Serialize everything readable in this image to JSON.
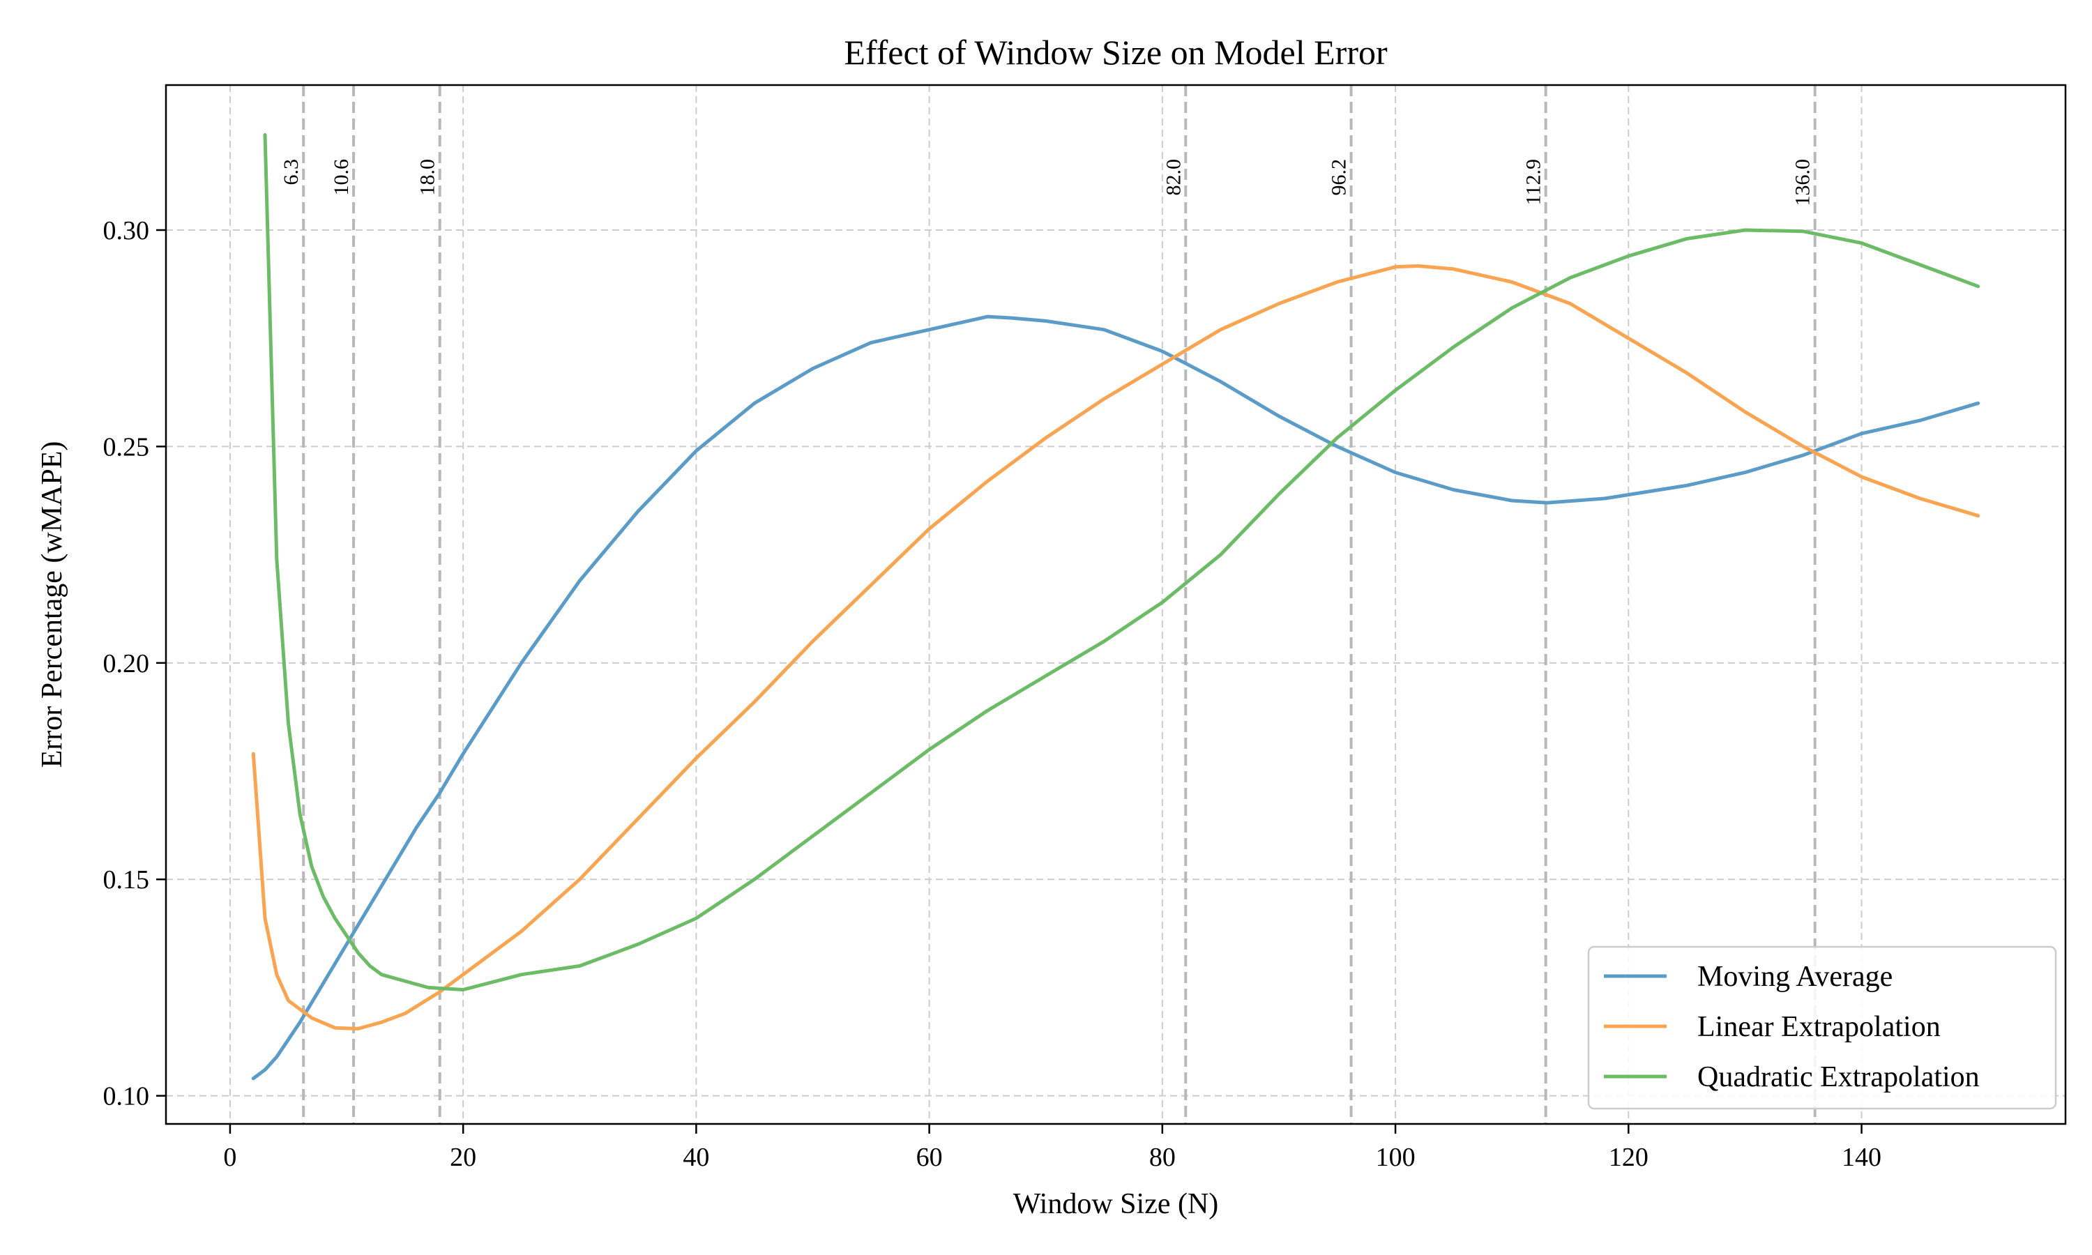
{
  "chart_data": {
    "type": "line",
    "title": "Effect of Window Size on Model Error",
    "xlabel": "Window Size (N)",
    "ylabel": "Error Percentage (wMAPE)",
    "xlim": [
      -5.5,
      157.5
    ],
    "ylim": [
      0.0935,
      0.3335
    ],
    "xticks": [
      0,
      20,
      40,
      60,
      80,
      100,
      120,
      140
    ],
    "xtick_labels": [
      "0",
      "20",
      "40",
      "60",
      "80",
      "100",
      "120",
      "140"
    ],
    "yticks": [
      0.1,
      0.15,
      0.2,
      0.25,
      0.3
    ],
    "ytick_labels": [
      "0.10",
      "0.15",
      "0.20",
      "0.25",
      "0.30"
    ],
    "grid": true,
    "legend_position": "lower-right",
    "vertical_lines": [
      {
        "x": 6.3,
        "label": "6.3"
      },
      {
        "x": 10.6,
        "label": "10.6"
      },
      {
        "x": 18.0,
        "label": "18.0"
      },
      {
        "x": 82.0,
        "label": "82.0"
      },
      {
        "x": 96.2,
        "label": "96.2"
      },
      {
        "x": 112.9,
        "label": "112.9"
      },
      {
        "x": 136.0,
        "label": "136.0"
      }
    ],
    "series": [
      {
        "name": "Moving Average",
        "color": "#5b9bc8",
        "points": [
          [
            2,
            0.104
          ],
          [
            3,
            0.106
          ],
          [
            4,
            0.109
          ],
          [
            6,
            0.117
          ],
          [
            8,
            0.126
          ],
          [
            10,
            0.135
          ],
          [
            12,
            0.144
          ],
          [
            14,
            0.153
          ],
          [
            16,
            0.162
          ],
          [
            18,
            0.17
          ],
          [
            20,
            0.179
          ],
          [
            25,
            0.2
          ],
          [
            30,
            0.219
          ],
          [
            35,
            0.235
          ],
          [
            40,
            0.249
          ],
          [
            45,
            0.26
          ],
          [
            50,
            0.268
          ],
          [
            55,
            0.274
          ],
          [
            60,
            0.277
          ],
          [
            65,
            0.28
          ],
          [
            67,
            0.2797
          ],
          [
            70,
            0.279
          ],
          [
            75,
            0.277
          ],
          [
            80,
            0.272
          ],
          [
            85,
            0.265
          ],
          [
            90,
            0.257
          ],
          [
            95,
            0.25
          ],
          [
            100,
            0.244
          ],
          [
            105,
            0.24
          ],
          [
            110,
            0.2375
          ],
          [
            113,
            0.237
          ],
          [
            118,
            0.238
          ],
          [
            125,
            0.241
          ],
          [
            130,
            0.244
          ],
          [
            135,
            0.248
          ],
          [
            140,
            0.253
          ],
          [
            145,
            0.256
          ],
          [
            150,
            0.26
          ]
        ]
      },
      {
        "name": "Linear Extrapolation",
        "color": "#f8a450",
        "points": [
          [
            2,
            0.179
          ],
          [
            3,
            0.141
          ],
          [
            4,
            0.128
          ],
          [
            5,
            0.122
          ],
          [
            7,
            0.118
          ],
          [
            9,
            0.1157
          ],
          [
            11,
            0.1155
          ],
          [
            13,
            0.117
          ],
          [
            15,
            0.119
          ],
          [
            18,
            0.124
          ],
          [
            20,
            0.128
          ],
          [
            25,
            0.138
          ],
          [
            30,
            0.15
          ],
          [
            35,
            0.164
          ],
          [
            40,
            0.178
          ],
          [
            45,
            0.191
          ],
          [
            50,
            0.205
          ],
          [
            55,
            0.218
          ],
          [
            60,
            0.231
          ],
          [
            65,
            0.242
          ],
          [
            70,
            0.252
          ],
          [
            75,
            0.261
          ],
          [
            80,
            0.269
          ],
          [
            85,
            0.277
          ],
          [
            90,
            0.283
          ],
          [
            95,
            0.288
          ],
          [
            100,
            0.2915
          ],
          [
            102,
            0.2917
          ],
          [
            105,
            0.291
          ],
          [
            110,
            0.288
          ],
          [
            115,
            0.283
          ],
          [
            120,
            0.275
          ],
          [
            125,
            0.267
          ],
          [
            130,
            0.258
          ],
          [
            135,
            0.25
          ],
          [
            140,
            0.243
          ],
          [
            145,
            0.238
          ],
          [
            150,
            0.234
          ]
        ]
      },
      {
        "name": "Quadratic Extrapolation",
        "color": "#6cbb66",
        "points": [
          [
            3,
            0.322
          ],
          [
            4,
            0.224
          ],
          [
            5,
            0.186
          ],
          [
            6,
            0.165
          ],
          [
            7,
            0.153
          ],
          [
            8,
            0.146
          ],
          [
            9,
            0.141
          ],
          [
            10,
            0.137
          ],
          [
            11,
            0.133
          ],
          [
            12,
            0.13
          ],
          [
            13,
            0.128
          ],
          [
            15,
            0.1265
          ],
          [
            17,
            0.125
          ],
          [
            20,
            0.1245
          ],
          [
            25,
            0.128
          ],
          [
            30,
            0.13
          ],
          [
            35,
            0.135
          ],
          [
            40,
            0.141
          ],
          [
            45,
            0.15
          ],
          [
            50,
            0.16
          ],
          [
            55,
            0.17
          ],
          [
            60,
            0.18
          ],
          [
            65,
            0.189
          ],
          [
            70,
            0.197
          ],
          [
            75,
            0.205
          ],
          [
            80,
            0.214
          ],
          [
            85,
            0.225
          ],
          [
            90,
            0.239
          ],
          [
            95,
            0.252
          ],
          [
            100,
            0.263
          ],
          [
            105,
            0.273
          ],
          [
            110,
            0.282
          ],
          [
            115,
            0.289
          ],
          [
            120,
            0.294
          ],
          [
            125,
            0.298
          ],
          [
            130,
            0.3
          ],
          [
            135,
            0.2997
          ],
          [
            140,
            0.297
          ],
          [
            145,
            0.292
          ],
          [
            150,
            0.287
          ]
        ]
      }
    ]
  }
}
